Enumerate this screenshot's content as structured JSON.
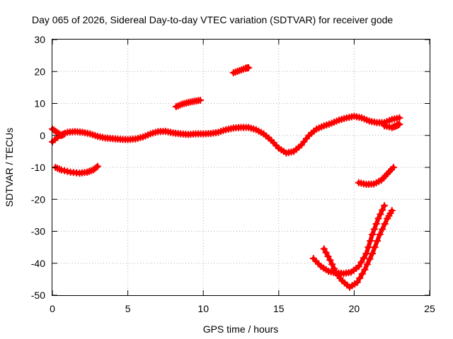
{
  "chart_data": {
    "type": "scatter",
    "title": "Day 065 of 2026, Sidereal Day-to-day VTEC variation (SDTVAR) for receiver gode",
    "xlabel": "GPS time / hours",
    "ylabel": "SDTVAR / TECUs",
    "xlim": [
      0,
      25
    ],
    "ylim": [
      -50,
      30
    ],
    "xticks": [
      "0",
      "5",
      "10",
      "15",
      "20",
      "25"
    ],
    "yticks": [
      "30",
      "20",
      "10",
      "0",
      "-10",
      "-20",
      "-30",
      "-40",
      "-50"
    ],
    "grid": true,
    "color": "#ff0000",
    "series": [
      {
        "name": "arc-main",
        "points": [
          [
            0,
            -2
          ],
          [
            0.5,
            0
          ],
          [
            1,
            1
          ],
          [
            1.5,
            1.2
          ],
          [
            2,
            1
          ],
          [
            2.5,
            0.5
          ],
          [
            3,
            -0.3
          ],
          [
            3.5,
            -0.8
          ],
          [
            4,
            -1
          ],
          [
            4.5,
            -1.2
          ],
          [
            5,
            -1.3
          ],
          [
            5.5,
            -1.1
          ],
          [
            6,
            -0.5
          ],
          [
            6.5,
            0.5
          ],
          [
            7,
            1.2
          ],
          [
            7.5,
            1.3
          ],
          [
            8,
            0.8
          ],
          [
            8.5,
            0.5
          ],
          [
            9,
            0.3
          ],
          [
            9.5,
            0.5
          ],
          [
            10,
            0.5
          ],
          [
            10.5,
            0.6
          ],
          [
            11,
            1
          ],
          [
            11.5,
            1.8
          ],
          [
            12,
            2.3
          ],
          [
            12.5,
            2.5
          ],
          [
            13,
            2.5
          ],
          [
            13.5,
            1.8
          ],
          [
            14,
            0.5
          ],
          [
            14.5,
            -1.5
          ],
          [
            15,
            -4
          ],
          [
            15.5,
            -5.5
          ],
          [
            16,
            -5
          ],
          [
            16.5,
            -3
          ],
          [
            17,
            0
          ],
          [
            17.5,
            2
          ],
          [
            18,
            3
          ],
          [
            18.5,
            3.8
          ],
          [
            19,
            4.8
          ],
          [
            19.5,
            5.5
          ],
          [
            20,
            6
          ],
          [
            20.5,
            5.5
          ],
          [
            21,
            4.5
          ],
          [
            21.5,
            4
          ],
          [
            22,
            4
          ],
          [
            22.5,
            5
          ],
          [
            23,
            5.5
          ]
        ]
      },
      {
        "name": "arc-a",
        "points": [
          [
            0,
            2
          ],
          [
            0.3,
            1
          ],
          [
            0.6,
            0
          ],
          [
            0.8,
            0.5
          ]
        ]
      },
      {
        "name": "arc-b",
        "points": [
          [
            22,
            3
          ],
          [
            22.5,
            2.5
          ],
          [
            22.8,
            3
          ],
          [
            23,
            3.5
          ]
        ]
      },
      {
        "name": "arc-c",
        "points": [
          [
            0.2,
            -10
          ],
          [
            0.6,
            -10.8
          ],
          [
            1.2,
            -11.5
          ],
          [
            1.8,
            -11.8
          ],
          [
            2.3,
            -11.5
          ],
          [
            2.7,
            -10.8
          ],
          [
            3,
            -9.7
          ]
        ]
      },
      {
        "name": "arc-d",
        "points": [
          [
            8.2,
            9
          ],
          [
            8.6,
            9.8
          ],
          [
            9,
            10.3
          ],
          [
            9.4,
            10.7
          ],
          [
            9.8,
            11
          ]
        ]
      },
      {
        "name": "arc-e",
        "points": [
          [
            12,
            19.6
          ],
          [
            12.4,
            20.3
          ],
          [
            12.8,
            21
          ],
          [
            13,
            21.2
          ]
        ]
      },
      {
        "name": "arc-f",
        "points": [
          [
            20.3,
            -14.8
          ],
          [
            20.8,
            -15.3
          ],
          [
            21.3,
            -15.2
          ],
          [
            21.8,
            -14
          ],
          [
            22.2,
            -12
          ],
          [
            22.6,
            -10
          ]
        ]
      },
      {
        "name": "arc-g",
        "points": [
          [
            17.3,
            -38.5
          ],
          [
            17.8,
            -41
          ],
          [
            18.3,
            -42.5
          ],
          [
            18.8,
            -43
          ],
          [
            19.3,
            -43.2
          ],
          [
            19.8,
            -42.8
          ],
          [
            20.3,
            -41
          ],
          [
            20.8,
            -37
          ],
          [
            21.2,
            -31
          ],
          [
            21.6,
            -26
          ],
          [
            22,
            -22
          ]
        ]
      },
      {
        "name": "arc-h",
        "points": [
          [
            18,
            -35.5
          ],
          [
            18.4,
            -39
          ],
          [
            18.8,
            -43
          ],
          [
            19.2,
            -45.5
          ],
          [
            19.7,
            -47.5
          ],
          [
            20.2,
            -46
          ],
          [
            20.7,
            -42
          ],
          [
            21.2,
            -37
          ],
          [
            21.7,
            -31
          ],
          [
            22.2,
            -26
          ],
          [
            22.5,
            -23.5
          ]
        ]
      }
    ]
  }
}
